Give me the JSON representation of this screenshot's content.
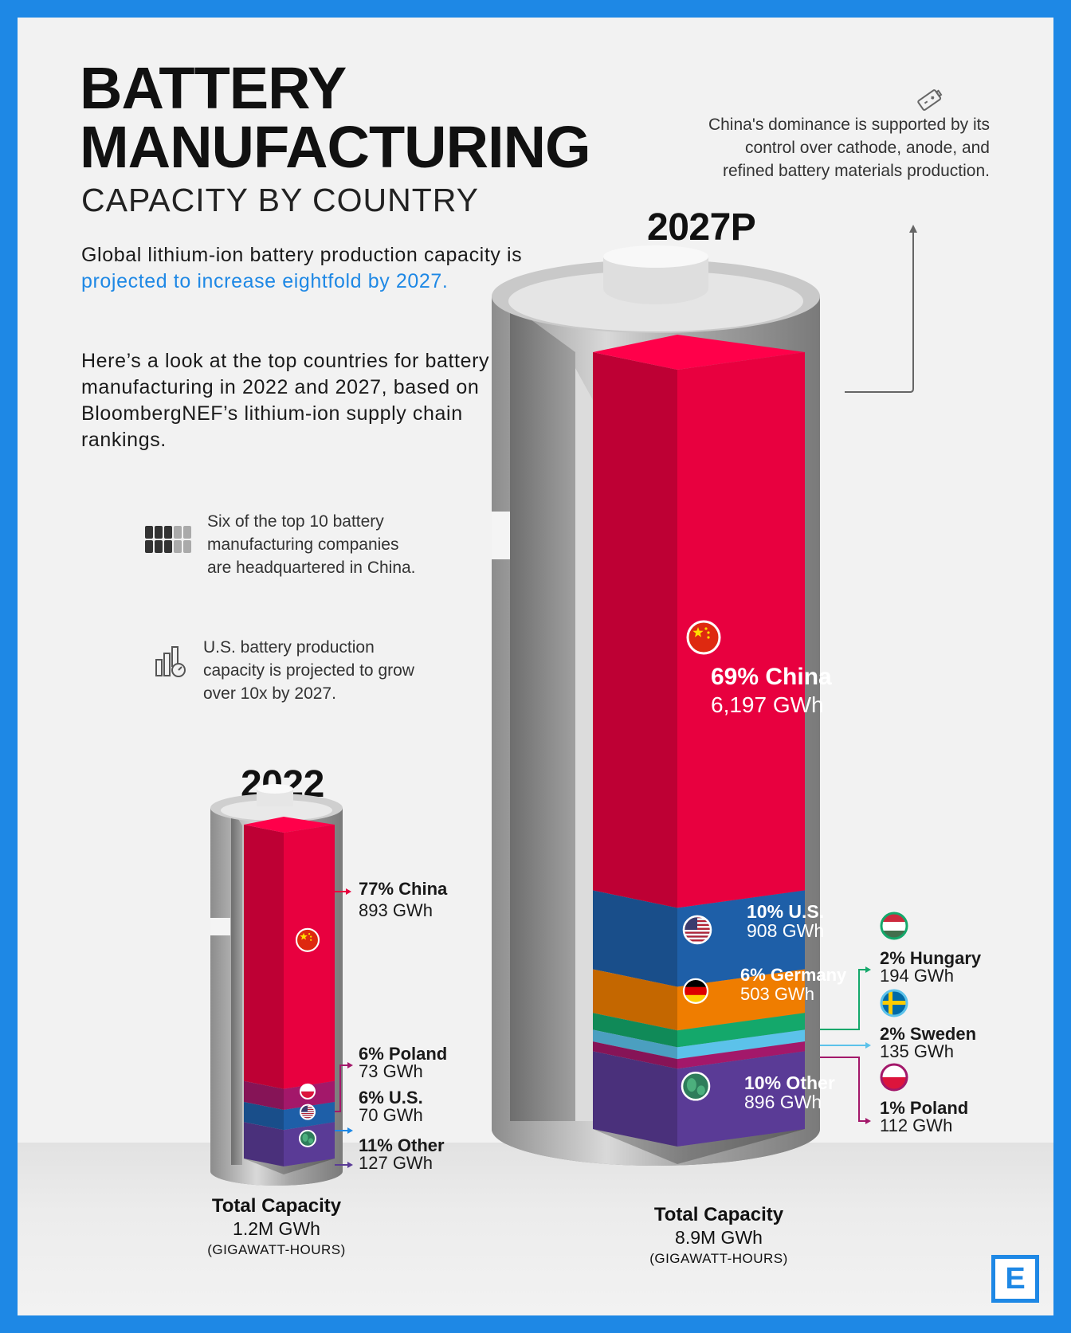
{
  "title_line1": "BATTERY",
  "title_line2": "MANUFACTURING",
  "subtitle": "CAPACITY BY COUNTRY",
  "intro": {
    "part1": "Global lithium-ion battery production capacity is ",
    "highlight": "projected to increase eightfold by 2027.",
    "para2": "Here’s a look at the top countries for battery manufacturing in 2022 and 2027, based on BloombergNEF’s lithium-ion supply chain rankings."
  },
  "notes": {
    "companies": "Six of the top 10 battery manufacturing companies are headquartered in China.",
    "us_growth": "U.S. battery production capacity is projected to grow over 10x by 2027.",
    "china_dominance": "China's dominance is supported by its control over cathode, anode, and refined battery materials production."
  },
  "icons": {
    "companies": "battery-cells-icon",
    "us_growth": "bar-chart-gauge-icon",
    "china_note": "battery-icon",
    "china": "china-flag-icon",
    "us": "us-flag-icon",
    "poland": "poland-flag-icon",
    "germany": "germany-flag-icon",
    "hungary": "hungary-flag-icon",
    "sweden": "sweden-flag-icon",
    "other": "globe-icon"
  },
  "colors": {
    "china": "#e8003f",
    "us": "#1e5fa8",
    "germany": "#ef7d00",
    "hungary": "#14a86b",
    "sweden": "#5cc2ea",
    "poland": "#a3186a",
    "other": "#5a3b96",
    "accent": "#1e88e5"
  },
  "chart_data": [
    {
      "type": "bar",
      "title": "2022",
      "unit": "GWh",
      "total_label": "Total Capacity",
      "total_value": "1.2M GWh",
      "total_unit": "(GIGAWATT-HOURS)",
      "segments": [
        {
          "country": "China",
          "share_label": "77%",
          "pct_text": "77% China",
          "value": 893,
          "value_text": "893 GWh"
        },
        {
          "country": "Poland",
          "share_label": "6%",
          "pct_text": "6% Poland",
          "value": 73,
          "value_text": "73 GWh"
        },
        {
          "country": "U.S.",
          "share_label": "6%",
          "pct_text": "6% U.S.",
          "value": 70,
          "value_text": "70 GWh"
        },
        {
          "country": "Other",
          "share_label": "11%",
          "pct_text": "11% Other",
          "value": 127,
          "value_text": "127 GWh"
        }
      ]
    },
    {
      "type": "bar",
      "title": "2027P",
      "unit": "GWh",
      "total_label": "Total Capacity",
      "total_value": "8.9M GWh",
      "total_unit": "(GIGAWATT-HOURS)",
      "segments": [
        {
          "country": "China",
          "share_label": "69%",
          "pct_text": "69% China",
          "value": 6197,
          "value_text": "6,197 GWh"
        },
        {
          "country": "U.S.",
          "share_label": "10%",
          "pct_text": "10% U.S.",
          "value": 908,
          "value_text": "908 GWh"
        },
        {
          "country": "Germany",
          "share_label": "6%",
          "pct_text": "6% Germany",
          "value": 503,
          "value_text": "503 GWh"
        },
        {
          "country": "Hungary",
          "share_label": "2%",
          "pct_text": "2% Hungary",
          "value": 194,
          "value_text": "194 GWh"
        },
        {
          "country": "Sweden",
          "share_label": "2%",
          "pct_text": "2% Sweden",
          "value": 135,
          "value_text": "135 GWh"
        },
        {
          "country": "Poland",
          "share_label": "1%",
          "pct_text": "1% Poland",
          "value": 112,
          "value_text": "112 GWh"
        },
        {
          "country": "Other",
          "share_label": "10%",
          "pct_text": "10% Other",
          "value": 896,
          "value_text": "896 GWh"
        }
      ]
    }
  ],
  "logo": "E"
}
